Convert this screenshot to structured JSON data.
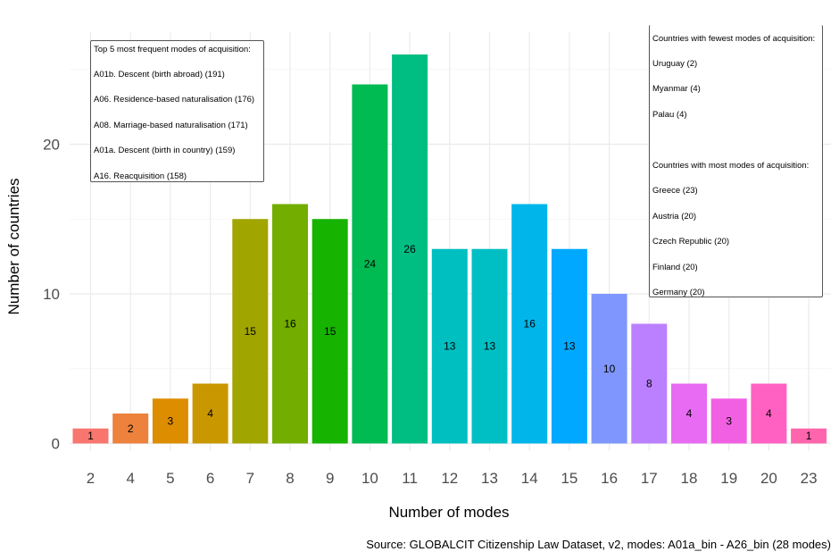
{
  "chart_data": {
    "type": "bar",
    "xlabel": "Number of modes",
    "ylabel": "Number of countries",
    "categories": [
      "2",
      "4",
      "5",
      "6",
      "7",
      "8",
      "9",
      "10",
      "11",
      "12",
      "13",
      "14",
      "15",
      "16",
      "17",
      "18",
      "19",
      "20",
      "23"
    ],
    "values": [
      1,
      2,
      3,
      4,
      15,
      16,
      15,
      24,
      26,
      13,
      13,
      16,
      13,
      10,
      8,
      4,
      3,
      4,
      1
    ],
    "colors": [
      "#F8766D",
      "#EC823C",
      "#DD8D00",
      "#C99800",
      "#A0A500",
      "#72AD00",
      "#16B300",
      "#00BA52",
      "#00BE81",
      "#00BFC1",
      "#00BFC4",
      "#00B5E9",
      "#00A9FF",
      "#7F96FF",
      "#BB80FF",
      "#E76BF3",
      "#F160E3",
      "#FF61C3",
      "#FF65AC"
    ],
    "ylim": [
      0,
      27.5
    ],
    "yticks": [
      0,
      10,
      20
    ],
    "grid": true,
    "caption": "Source: GLOBALCIT Citizenship Law Dataset, v2, modes: A01a_bin - A26_bin (28 modes)",
    "annotations": {
      "left_box": {
        "title": "Top 5 most frequent modes of acquisition:",
        "items": [
          "A01b. Descent (birth abroad) (191)",
          "A06. Residence-based naturalisation (176)",
          "A08. Marriage-based naturalisation (171)",
          "A01a. Descent (birth in country) (159)",
          "A16. Reacquisition (158)"
        ]
      },
      "right_box": {
        "fewest_title": "Countries with fewest modes of acquisition:",
        "fewest": [
          "Uruguay (2)",
          "Myanmar (4)",
          "Palau (4)"
        ],
        "most_title": "Countries with most modes of acquisition:",
        "most": [
          "Greece (23)",
          "Austria (20)",
          "Czech Republic (20)",
          "Finland (20)",
          "Germany (20)"
        ]
      }
    }
  }
}
